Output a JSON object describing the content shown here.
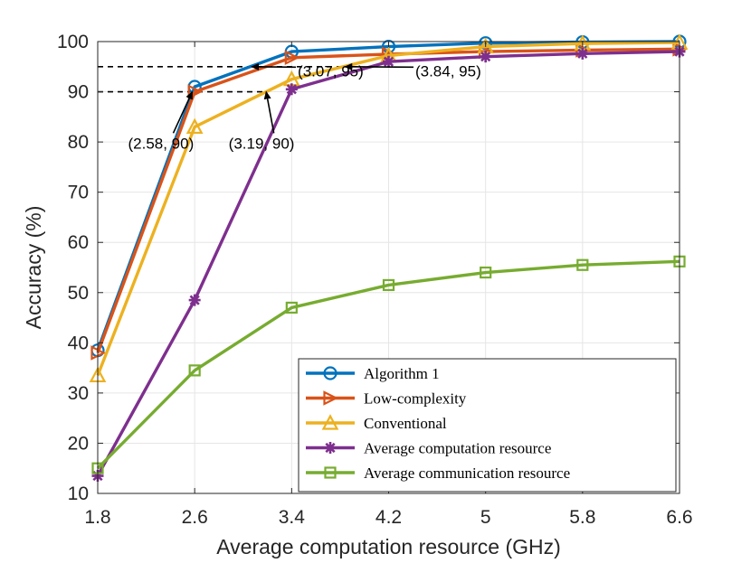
{
  "chart_data": {
    "type": "line",
    "xlabel": "Average computation resource (GHz)",
    "ylabel": "Accuracy (%)",
    "x": [
      1.8,
      2.6,
      3.4,
      4.2,
      5,
      5.8,
      6.6
    ],
    "x_tick_labels": [
      "1.8",
      "2.6",
      "3.4",
      "4.2",
      "5",
      "5.8",
      "6.6"
    ],
    "y_ticks": [
      10,
      20,
      30,
      40,
      50,
      60,
      70,
      80,
      90,
      100
    ],
    "xlim": [
      1.8,
      6.6
    ],
    "ylim": [
      10,
      100
    ],
    "grid": true,
    "legend_position": "bottom-right",
    "series": [
      {
        "name": "Algorithm 1",
        "color": "#0072BD",
        "marker": "circle",
        "values": [
          38.5,
          91,
          98,
          99,
          99.7,
          99.9,
          100
        ]
      },
      {
        "name": "Low-complexity",
        "color": "#D95319",
        "marker": "triangle-right",
        "values": [
          38,
          90,
          96.8,
          97.5,
          98,
          98.3,
          98.5
        ]
      },
      {
        "name": "Conventional",
        "color": "#EDB120",
        "marker": "triangle-up",
        "values": [
          33.5,
          83,
          92.5,
          97.2,
          99,
          99.6,
          99.8
        ]
      },
      {
        "name": "Average computation resource",
        "color": "#7E2F8E",
        "marker": "asterisk",
        "values": [
          13.5,
          48.5,
          90.5,
          96,
          97,
          97.6,
          98
        ]
      },
      {
        "name": "Average communication resource",
        "color": "#77AC30",
        "marker": "square",
        "values": [
          15,
          34.5,
          47,
          51.5,
          54,
          55.5,
          56.2
        ]
      }
    ],
    "reference_lines": [
      {
        "y": 95,
        "x_from": 1.8,
        "x_to": 3.84
      },
      {
        "y": 90,
        "x_from": 1.8,
        "x_to": 3.19
      }
    ],
    "annotations": [
      {
        "text": "(3.07, 95)",
        "point": [
          3.07,
          95
        ],
        "label_at": [
          3.45,
          93.1
        ]
      },
      {
        "text": "(3.84, 95)",
        "point": [
          3.84,
          95
        ],
        "label_at": [
          4.42,
          93.1
        ]
      },
      {
        "text": "(2.58, 90)",
        "point": [
          2.58,
          90
        ],
        "label_at": [
          2.05,
          78.7
        ]
      },
      {
        "text": "(3.19, 90)",
        "point": [
          3.19,
          90
        ],
        "label_at": [
          2.88,
          78.7
        ]
      }
    ]
  }
}
